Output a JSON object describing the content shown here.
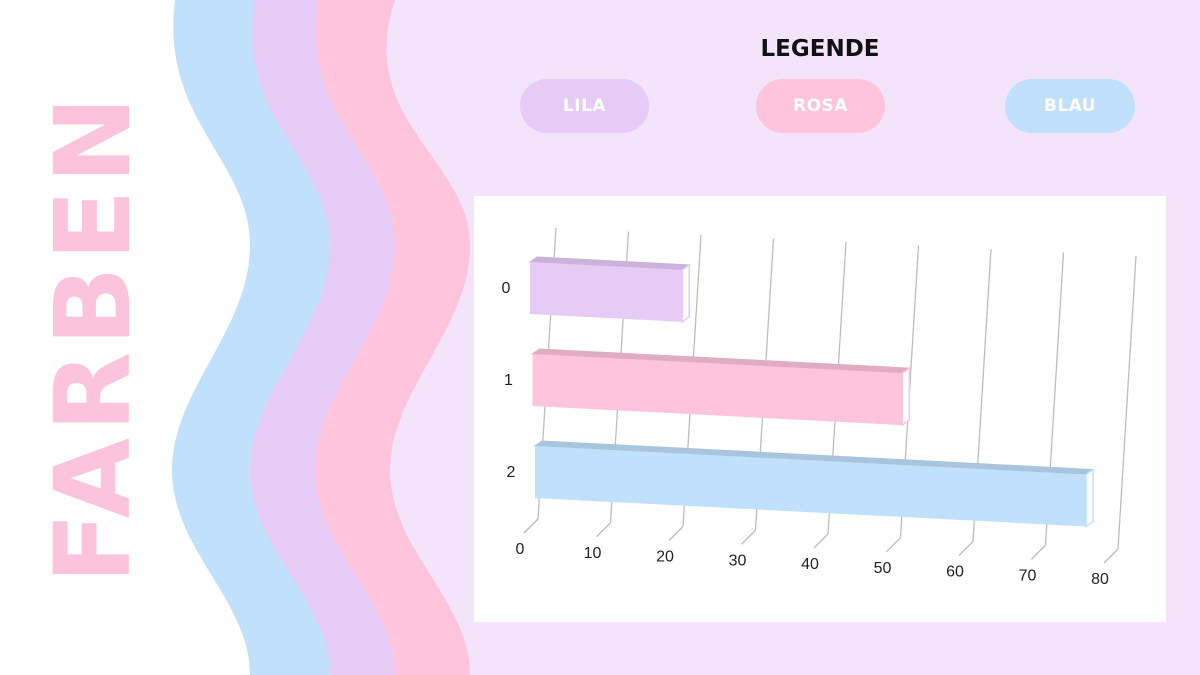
{
  "side_title": "FARBEN",
  "legend": {
    "title": "LEGENDE",
    "items": [
      {
        "label": "LILA",
        "color": "#e5cbf6"
      },
      {
        "label": "ROSA",
        "color": "#fdc4dc"
      },
      {
        "label": "BLAU",
        "color": "#c0e0fb"
      }
    ]
  },
  "colors": {
    "background": "#f3e4fc",
    "wave_blue": "#c0e0fb",
    "wave_lila": "#e5cbf6",
    "wave_pink": "#fdc4dc",
    "title_pink": "#fcc4dc"
  },
  "chart_data": {
    "type": "bar",
    "orientation": "horizontal",
    "style": "3d",
    "categories": [
      "0",
      "1",
      "2"
    ],
    "values": [
      21,
      51,
      76
    ],
    "bar_colors": [
      "#e5cbf6",
      "#fdc4dc",
      "#c0e0fb"
    ],
    "x_ticks": [
      0,
      10,
      20,
      30,
      40,
      50,
      60,
      70,
      80
    ],
    "xlim": [
      0,
      80
    ],
    "grid": true,
    "title": "",
    "xlabel": "",
    "ylabel": ""
  }
}
